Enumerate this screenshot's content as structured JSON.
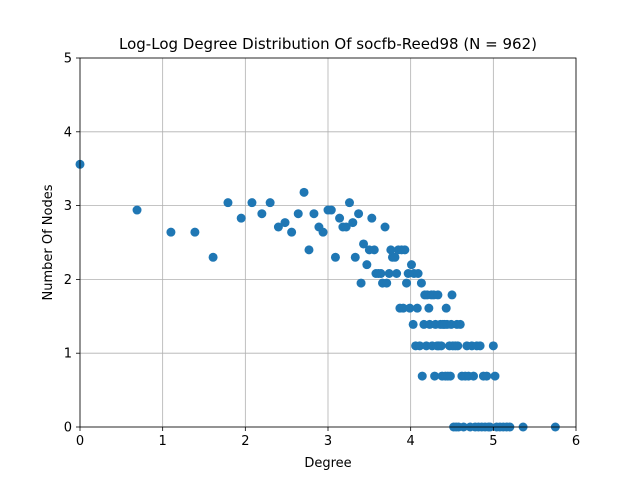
{
  "chart_data": {
    "type": "scatter",
    "title": "Log-Log Degree Distribution Of socfb-Reed98 (N = 962)",
    "xlabel": "Degree",
    "ylabel": "Number Of Nodes",
    "xlim": [
      0,
      6
    ],
    "ylim": [
      0,
      5
    ],
    "xticks": [
      "0",
      "1",
      "2",
      "3",
      "4",
      "5",
      "6"
    ],
    "yticks": [
      "0",
      "1",
      "2",
      "3",
      "4",
      "5"
    ],
    "grid": true,
    "marker_color": "#1f77b4",
    "points": [
      [
        0.0,
        3.56
      ],
      [
        0.69,
        2.94
      ],
      [
        1.1,
        2.64
      ],
      [
        1.39,
        2.64
      ],
      [
        1.61,
        2.3
      ],
      [
        1.79,
        3.04
      ],
      [
        1.95,
        2.83
      ],
      [
        2.08,
        3.04
      ],
      [
        2.2,
        2.89
      ],
      [
        2.3,
        3.04
      ],
      [
        2.4,
        2.71
      ],
      [
        2.48,
        2.77
      ],
      [
        2.56,
        2.64
      ],
      [
        2.64,
        2.89
      ],
      [
        2.71,
        3.18
      ],
      [
        2.77,
        2.4
      ],
      [
        2.83,
        2.89
      ],
      [
        2.89,
        2.71
      ],
      [
        2.94,
        2.64
      ],
      [
        3.0,
        2.94
      ],
      [
        3.04,
        2.94
      ],
      [
        3.09,
        2.3
      ],
      [
        3.14,
        2.83
      ],
      [
        3.18,
        2.71
      ],
      [
        3.22,
        2.71
      ],
      [
        3.26,
        3.04
      ],
      [
        3.3,
        2.77
      ],
      [
        3.33,
        2.3
      ],
      [
        3.37,
        2.89
      ],
      [
        3.4,
        1.95
      ],
      [
        3.43,
        2.48
      ],
      [
        3.47,
        2.2
      ],
      [
        3.5,
        2.4
      ],
      [
        3.53,
        2.83
      ],
      [
        3.56,
        2.4
      ],
      [
        3.58,
        2.08
      ],
      [
        3.61,
        2.08
      ],
      [
        3.64,
        2.08
      ],
      [
        3.66,
        1.95
      ],
      [
        3.69,
        2.71
      ],
      [
        3.71,
        1.95
      ],
      [
        3.74,
        2.08
      ],
      [
        3.76,
        2.4
      ],
      [
        3.78,
        2.3
      ],
      [
        3.81,
        2.3
      ],
      [
        3.83,
        2.08
      ],
      [
        3.85,
        2.4
      ],
      [
        3.87,
        1.61
      ],
      [
        3.89,
        2.4
      ],
      [
        3.91,
        1.61
      ],
      [
        3.93,
        2.4
      ],
      [
        3.95,
        1.95
      ],
      [
        3.97,
        2.08
      ],
      [
        3.99,
        1.61
      ],
      [
        4.01,
        2.2
      ],
      [
        4.03,
        1.39
      ],
      [
        4.04,
        2.08
      ],
      [
        4.06,
        1.1
      ],
      [
        4.08,
        1.61
      ],
      [
        4.09,
        2.08
      ],
      [
        4.11,
        1.1
      ],
      [
        4.13,
        1.95
      ],
      [
        4.14,
        0.69
      ],
      [
        4.16,
        1.39
      ],
      [
        4.17,
        1.79
      ],
      [
        4.19,
        1.1
      ],
      [
        4.2,
        1.79
      ],
      [
        4.22,
        1.61
      ],
      [
        4.23,
        1.39
      ],
      [
        4.25,
        1.79
      ],
      [
        4.26,
        1.1
      ],
      [
        4.28,
        1.79
      ],
      [
        4.29,
        0.69
      ],
      [
        4.3,
        1.39
      ],
      [
        4.32,
        1.1
      ],
      [
        4.33,
        1.79
      ],
      [
        4.34,
        1.1
      ],
      [
        4.36,
        1.39
      ],
      [
        4.37,
        1.1
      ],
      [
        4.38,
        0.69
      ],
      [
        4.39,
        1.39
      ],
      [
        4.41,
        1.39
      ],
      [
        4.42,
        0.69
      ],
      [
        4.43,
        1.61
      ],
      [
        4.44,
        1.39
      ],
      [
        4.45,
        0.69
      ],
      [
        4.47,
        1.1
      ],
      [
        4.48,
        0.69
      ],
      [
        4.49,
        1.39
      ],
      [
        4.5,
        1.79
      ],
      [
        4.51,
        1.1
      ],
      [
        4.52,
        0.0
      ],
      [
        4.54,
        1.1
      ],
      [
        4.55,
        0.0
      ],
      [
        4.56,
        1.39
      ],
      [
        4.57,
        1.1
      ],
      [
        4.58,
        0.0
      ],
      [
        4.6,
        1.39
      ],
      [
        4.62,
        0.69
      ],
      [
        4.64,
        0.0
      ],
      [
        4.66,
        0.69
      ],
      [
        4.68,
        1.1
      ],
      [
        4.7,
        0.69
      ],
      [
        4.72,
        0.0
      ],
      [
        4.74,
        1.1
      ],
      [
        4.76,
        0.69
      ],
      [
        4.78,
        0.0
      ],
      [
        4.8,
        1.1
      ],
      [
        4.82,
        0.0
      ],
      [
        4.84,
        1.1
      ],
      [
        4.86,
        0.0
      ],
      [
        4.88,
        0.69
      ],
      [
        4.9,
        0.0
      ],
      [
        4.92,
        0.69
      ],
      [
        4.94,
        0.0
      ],
      [
        4.96,
        0.0
      ],
      [
        5.0,
        1.1
      ],
      [
        5.02,
        0.69
      ],
      [
        5.04,
        0.0
      ],
      [
        5.08,
        0.0
      ],
      [
        5.12,
        0.0
      ],
      [
        5.16,
        0.0
      ],
      [
        5.2,
        0.0
      ],
      [
        5.36,
        0.0
      ],
      [
        5.75,
        0.0
      ]
    ]
  }
}
